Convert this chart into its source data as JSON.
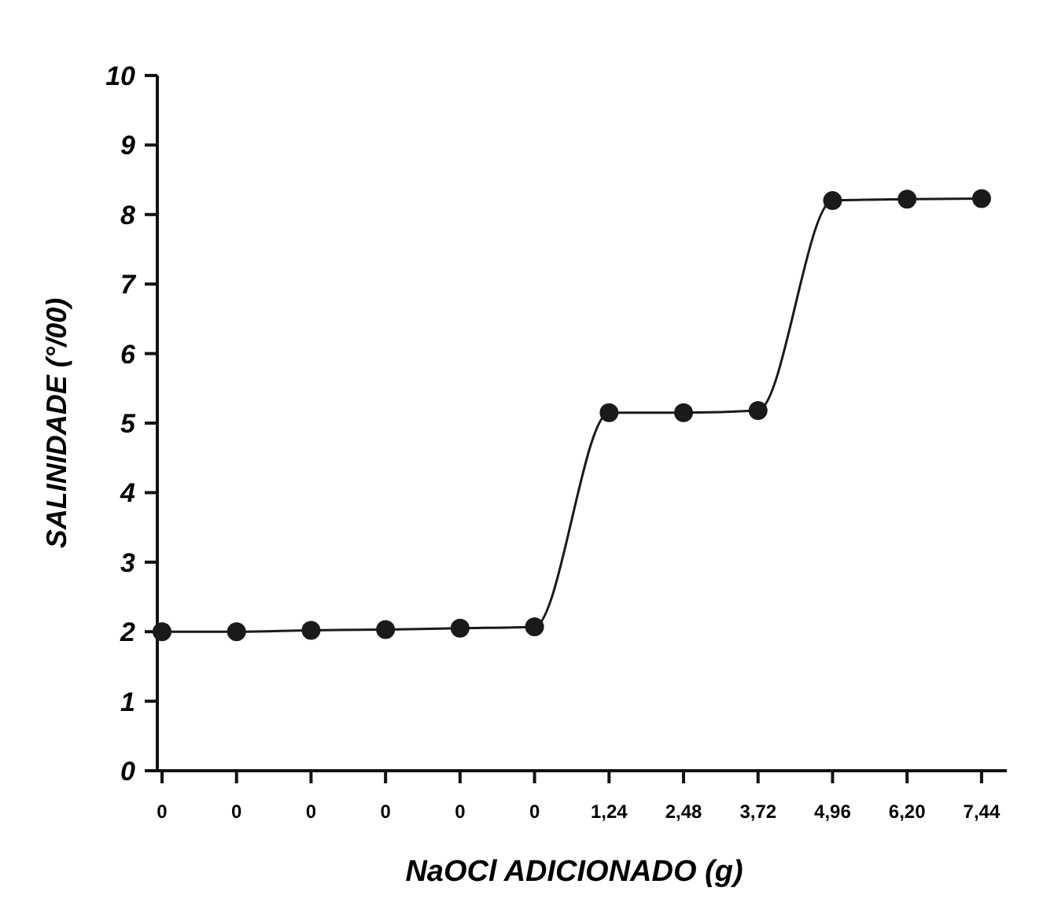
{
  "chart_data": {
    "type": "line",
    "xlabel": "NaOCl ADICIONADO (g)",
    "ylabel": "SALINIDADE (°/00)",
    "categories": [
      "0",
      "0",
      "0",
      "0",
      "0",
      "0",
      "1,24",
      "2,48",
      "3,72",
      "4,96",
      "6,20",
      "7,44"
    ],
    "series": [
      {
        "color": "#1a1a1a",
        "values": [
          2,
          2,
          2.02,
          2.03,
          2.05,
          2.07,
          5.15,
          5.15,
          5.18,
          8.2,
          8.22,
          8.23
        ]
      }
    ],
    "ylim": [
      0,
      10
    ],
    "yticks": [
      0,
      1,
      2,
      3,
      4,
      5,
      6,
      7,
      8,
      9,
      10
    ],
    "marker": "circle",
    "line_style": "solid"
  }
}
